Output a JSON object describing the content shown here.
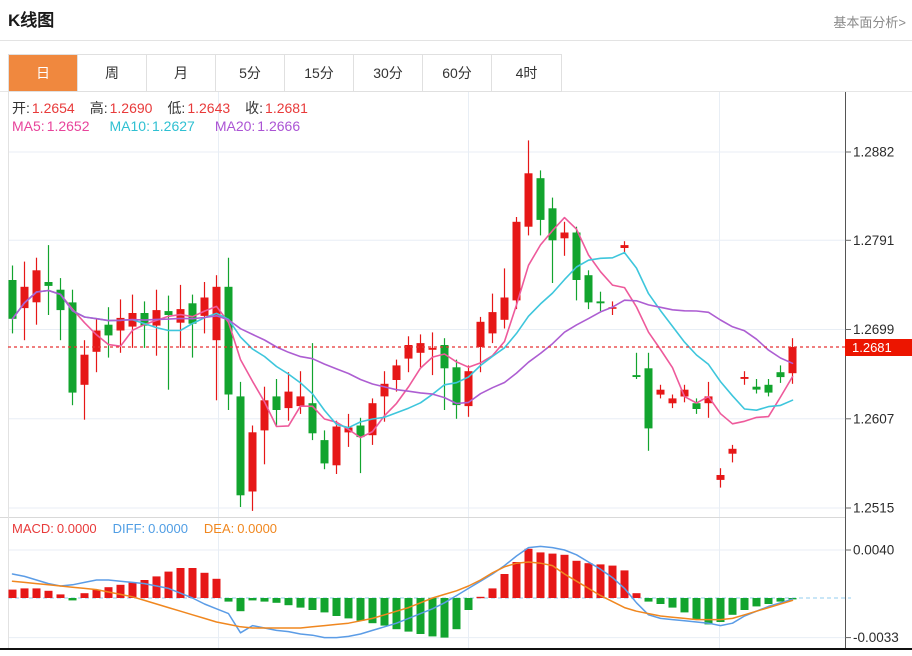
{
  "page": {
    "title": "K线图",
    "link": "基本面分析>"
  },
  "tabs": {
    "items": [
      {
        "label": "日",
        "active": true
      },
      {
        "label": "周",
        "active": false
      },
      {
        "label": "月",
        "active": false
      },
      {
        "label": "5分",
        "active": false
      },
      {
        "label": "15分",
        "active": false
      },
      {
        "label": "30分",
        "active": false
      },
      {
        "label": "60分",
        "active": false
      },
      {
        "label": "4时",
        "active": false
      }
    ]
  },
  "ohlc_legend": {
    "open_label": "开:",
    "open_value": "1.2654",
    "high_label": "高:",
    "high_value": "1.2690",
    "low_label": "低:",
    "low_value": "1.2643",
    "close_label": "收:",
    "close_value": "1.2681"
  },
  "ma_legend": {
    "ma5_label": "MA5:",
    "ma5_value": "1.2652",
    "ma10_label": "MA10:",
    "ma10_value": "1.2627",
    "ma20_label": "MA20:",
    "ma20_value": "1.2666"
  },
  "macd_legend": {
    "macd_label": "MACD:",
    "macd_value": "0.0000",
    "diff_label": "DIFF:",
    "diff_value": "0.0000",
    "dea_label": "DEA:",
    "dea_value": "0.0000"
  },
  "colors": {
    "up": "#e61717",
    "down": "#12a42e",
    "ma5": "#ee5a9b",
    "ma10": "#3ec6dc",
    "ma20": "#ad5ed2",
    "diff": "#5b9ce6",
    "dea": "#f0871f",
    "tab_active": "#f0883e",
    "price_badge": "#ec1500",
    "current_line": "#e83333",
    "grid": "#e8eef5",
    "axis": "#555555",
    "tick_label": "#2b2b2b",
    "macd_zero_line": "#a9d7f2",
    "bottom_line": "#111111"
  },
  "chart_data": {
    "type": "candlestick",
    "title": "K线图",
    "period": "日",
    "legend": {
      "open": 1.2654,
      "high": 1.269,
      "low": 1.2643,
      "close": 1.2681,
      "ma5": 1.2652,
      "ma10": 1.2627,
      "ma20": 1.2666,
      "macd": 0.0,
      "diff": 0.0,
      "dea": 0.0
    },
    "price_axis": {
      "ticks": [
        1.2882,
        1.2791,
        1.2699,
        1.2607,
        1.2515
      ],
      "current": 1.2681,
      "current_label": "1.2681"
    },
    "ma_periods": [
      5,
      10,
      20
    ],
    "candles": [
      [
        1.275,
        1.2765,
        1.2695,
        1.271
      ],
      [
        1.2721,
        1.2769,
        1.2688,
        1.2743
      ],
      [
        1.2727,
        1.2773,
        1.2704,
        1.276
      ],
      [
        1.2748,
        1.2786,
        1.2714,
        1.2744
      ],
      [
        1.274,
        1.2752,
        1.2688,
        1.2719
      ],
      [
        1.2727,
        1.274,
        1.2621,
        1.2634
      ],
      [
        1.2642,
        1.2688,
        1.2606,
        1.2673
      ],
      [
        1.2676,
        1.271,
        1.2655,
        1.2698
      ],
      [
        1.2704,
        1.2722,
        1.267,
        1.2693
      ],
      [
        1.2698,
        1.273,
        1.2675,
        1.2711
      ],
      [
        1.2702,
        1.2735,
        1.268,
        1.2716
      ],
      [
        1.2716,
        1.2728,
        1.268,
        1.2703
      ],
      [
        1.2703,
        1.274,
        1.2672,
        1.2719
      ],
      [
        1.2718,
        1.2734,
        1.2637,
        1.2714
      ],
      [
        1.2706,
        1.2745,
        1.268,
        1.272
      ],
      [
        1.2726,
        1.2735,
        1.267,
        1.2705
      ],
      [
        1.2713,
        1.2748,
        1.2695,
        1.2732
      ],
      [
        1.2688,
        1.2755,
        1.2626,
        1.2743
      ],
      [
        1.2743,
        1.2773,
        1.2616,
        1.2632
      ],
      [
        1.263,
        1.2645,
        1.2516,
        1.2528
      ],
      [
        1.2532,
        1.26,
        1.2512,
        1.2593
      ],
      [
        1.2595,
        1.264,
        1.256,
        1.2626
      ],
      [
        1.263,
        1.2648,
        1.26,
        1.2616
      ],
      [
        1.2618,
        1.2655,
        1.2605,
        1.2635
      ],
      [
        1.262,
        1.2656,
        1.2612,
        1.263
      ],
      [
        1.2623,
        1.2685,
        1.2585,
        1.2592
      ],
      [
        1.2585,
        1.2595,
        1.2555,
        1.2561
      ],
      [
        1.2559,
        1.2605,
        1.255,
        1.2599
      ],
      [
        1.2593,
        1.2612,
        1.2578,
        1.2598
      ],
      [
        1.26,
        1.2608,
        1.2551,
        1.2588
      ],
      [
        1.259,
        1.2628,
        1.258,
        1.2623
      ],
      [
        1.263,
        1.2656,
        1.2604,
        1.2643
      ],
      [
        1.2647,
        1.2668,
        1.2635,
        1.2662
      ],
      [
        1.2669,
        1.2692,
        1.2655,
        1.2683
      ],
      [
        1.2675,
        1.2694,
        1.266,
        1.2685
      ],
      [
        1.2678,
        1.2696,
        1.2652,
        1.268
      ],
      [
        1.2683,
        1.269,
        1.2616,
        1.2659
      ],
      [
        1.266,
        1.2668,
        1.2607,
        1.2621
      ],
      [
        1.262,
        1.2662,
        1.2609,
        1.2656
      ],
      [
        1.2681,
        1.2712,
        1.2655,
        1.2707
      ],
      [
        1.2695,
        1.2736,
        1.2685,
        1.2717
      ],
      [
        1.2709,
        1.2762,
        1.27,
        1.2732
      ],
      [
        1.2729,
        1.2815,
        1.272,
        1.281
      ],
      [
        1.2805,
        1.2894,
        1.2796,
        1.286
      ],
      [
        1.2855,
        1.2863,
        1.2796,
        1.2812
      ],
      [
        1.2824,
        1.2835,
        1.2747,
        1.2791
      ],
      [
        1.2793,
        1.281,
        1.2775,
        1.2799
      ],
      [
        1.2799,
        1.2805,
        1.2729,
        1.275
      ],
      [
        1.2755,
        1.276,
        1.272,
        1.2727
      ],
      [
        1.2728,
        1.2738,
        1.2718,
        1.2726
      ],
      [
        1.2721,
        1.2728,
        1.2714,
        1.2722
      ],
      [
        1.2783,
        1.279,
        1.2778,
        1.2786
      ],
      [
        1.2652,
        1.2675,
        1.2648,
        1.265
      ],
      [
        1.2659,
        1.2675,
        1.2574,
        1.2597
      ],
      [
        1.2632,
        1.2642,
        1.2628,
        1.2637
      ],
      [
        1.2623,
        1.2632,
        1.2618,
        1.2628
      ],
      [
        1.263,
        1.2642,
        1.2624,
        1.2637
      ],
      [
        1.2623,
        1.2628,
        1.2612,
        1.2617
      ],
      [
        1.2623,
        1.2645,
        1.2608,
        1.263
      ],
      [
        1.2544,
        1.2556,
        1.2536,
        1.2549
      ],
      [
        1.2571,
        1.258,
        1.2562,
        1.2576
      ],
      [
        1.2648,
        1.2656,
        1.2642,
        1.265
      ],
      [
        1.264,
        1.2648,
        1.2633,
        1.2637
      ],
      [
        1.2642,
        1.2648,
        1.263,
        1.2634
      ],
      [
        1.2655,
        1.2662,
        1.2644,
        1.265
      ],
      [
        1.2654,
        1.269,
        1.2643,
        1.2681
      ]
    ],
    "macd": {
      "scale": 0.0001,
      "axis_ticks": [
        0.004,
        -0.0033
      ],
      "histogram": [
        7,
        8,
        8,
        6,
        3,
        -2,
        4,
        7,
        9,
        11,
        13,
        15,
        18,
        22,
        25,
        25,
        21,
        16,
        -3,
        -11,
        -2,
        -3,
        -4,
        -6,
        -8,
        -10,
        -12,
        -15,
        -17,
        -19,
        -21,
        -23,
        -26,
        -28,
        -30,
        -32,
        -33,
        -26,
        -10,
        1,
        8,
        20,
        30,
        41,
        38,
        37,
        36,
        31,
        29,
        28,
        27,
        23,
        4,
        -3,
        -5,
        -8,
        -12,
        -18,
        -22,
        -20,
        -14,
        -10,
        -7,
        -5,
        -3,
        -1
      ],
      "diff": [
        20,
        18,
        15,
        12,
        10,
        11,
        13,
        15,
        15,
        14,
        13,
        12,
        10,
        8,
        4,
        0,
        -5,
        -9,
        -13,
        -29,
        -23,
        -25,
        -27,
        -28,
        -30,
        -31,
        -33,
        -33,
        -32,
        -30,
        -27,
        -24,
        -21,
        -17,
        -13,
        -9,
        -4,
        2,
        8,
        14,
        20,
        27,
        35,
        42,
        43,
        42,
        40,
        36,
        30,
        24,
        17,
        8,
        -4,
        -14,
        -17,
        -18,
        -19,
        -20,
        -21,
        -23,
        -21,
        -15,
        -11,
        -7,
        -4,
        -1
      ],
      "dea": [
        14,
        13,
        12,
        11,
        10,
        9,
        8,
        7,
        5,
        3,
        1,
        -2,
        -5,
        -8,
        -11,
        -14,
        -17,
        -20,
        -22,
        -24,
        -25,
        -25,
        -25,
        -25,
        -25,
        -24,
        -23,
        -22,
        -21,
        -19,
        -17,
        -14,
        -11,
        -8,
        -4,
        0,
        3,
        6,
        10,
        15,
        21,
        26,
        29,
        30,
        29,
        27,
        20,
        14,
        8,
        2,
        -3,
        -8,
        -11,
        -13,
        -15,
        -16,
        -17,
        -18,
        -18,
        -18,
        -17,
        -14,
        -11,
        -8,
        -5,
        -2
      ]
    }
  }
}
